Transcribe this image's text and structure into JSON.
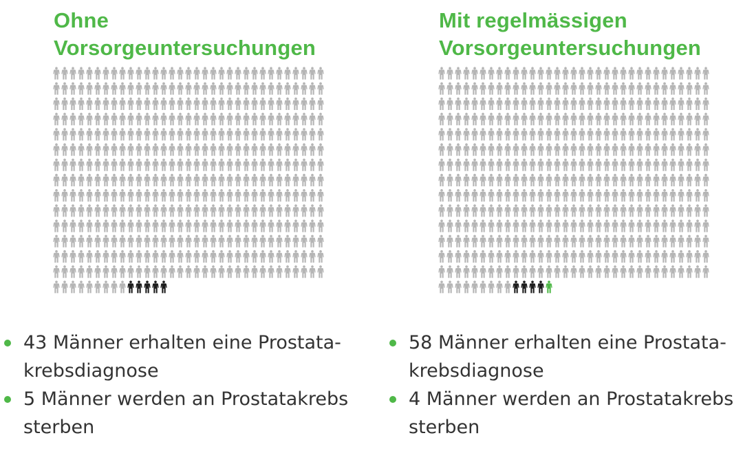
{
  "colors": {
    "accent": "#4fb848",
    "figure_default": "#b5b5b5",
    "figure_deaths": "#1c1c1c",
    "text": "#333333"
  },
  "icon": "person-icon",
  "chart_data": [
    {
      "type": "pictogram",
      "title_lines": [
        "Ohne",
        "Vorsorgeuntersuchungen"
      ],
      "grid": {
        "columns": 33,
        "rows": 15
      },
      "highlighted_last_row": [
        {
          "category": "deaths",
          "count": 5,
          "color": "#1c1c1c"
        }
      ],
      "notes": [
        {
          "lines": [
            "43 Männer erhalten eine Prostata-",
            "krebsdiagnose"
          ]
        },
        {
          "lines": [
            "5 Männer werden an Prostatakrebs",
            "sterben"
          ]
        }
      ]
    },
    {
      "type": "pictogram",
      "title_lines": [
        "Mit regelmässigen",
        "Vorsorgeuntersuchungen"
      ],
      "grid": {
        "columns": 33,
        "rows": 15
      },
      "highlighted_last_row": [
        {
          "category": "deaths",
          "count": 4,
          "color": "#1c1c1c"
        },
        {
          "category": "saved",
          "count": 1,
          "color": "#4fb848"
        }
      ],
      "notes": [
        {
          "lines": [
            "58 Männer erhalten eine Prostata-",
            "krebsdiagnose"
          ]
        },
        {
          "lines": [
            "4 Männer werden an Prostatakrebs",
            "sterben"
          ]
        }
      ]
    }
  ]
}
